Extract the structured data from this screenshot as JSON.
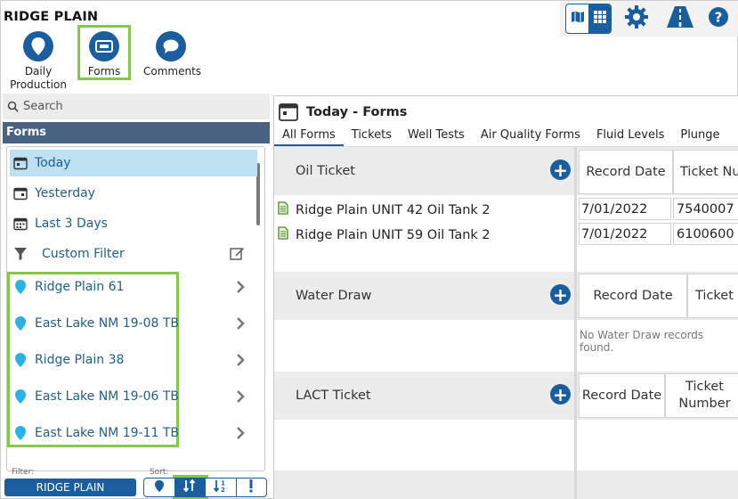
{
  "app": {
    "title": "RIDGE PLAIN"
  },
  "topnav": {
    "daily_production": "Daily\nProduction",
    "forms": "Forms",
    "comments": "Comments"
  },
  "toolbar": {
    "map_icon": "map-icon",
    "grid_icon": "grid-icon",
    "settings_icon": "gear-icon",
    "road_icon": "road-icon",
    "help_icon": "help-icon"
  },
  "left_panel": {
    "search_placeholder": "Search",
    "header": "Forms",
    "items": [
      {
        "label": "Today",
        "icon": "calendar-today-icon",
        "selected": true
      },
      {
        "label": "Yesterday",
        "icon": "calendar-icon"
      },
      {
        "label": "Last 3 Days",
        "icon": "calendar-range-icon"
      },
      {
        "label": "Custom Filter",
        "icon": "filter-icon"
      }
    ],
    "locations": [
      "Ridge Plain 61",
      "East Lake NM 19-08 TB",
      "Ridge Plain 38",
      "East Lake NM 19-06 TB",
      "East Lake NM 19-11 TB"
    ],
    "filter_label": "Filter:",
    "filter_value": "RIDGE PLAIN",
    "sort_label": "Sort:"
  },
  "main": {
    "title": "Today - Forms",
    "tabs": [
      "All Forms",
      "Tickets",
      "Well Tests",
      "Air Quality Forms",
      "Fluid Levels",
      "Plunge"
    ],
    "sections": [
      {
        "title": "Oil Ticket",
        "columns": [
          "Record Date",
          "Ticket Nu"
        ],
        "rows": [
          {
            "name": "Ridge Plain UNIT 42 Oil Tank 2",
            "record_date": "7/01/2022",
            "ticket": "7540007"
          },
          {
            "name": "Ridge Plain UNIT 59 Oil Tank 2",
            "record_date": "7/01/2022",
            "ticket": "6100600"
          }
        ]
      },
      {
        "title": "Water Draw",
        "columns": [
          "Record Date",
          "Ticket N"
        ],
        "empty": "No Water Draw records found."
      },
      {
        "title": "LACT Ticket",
        "columns": [
          "Record Date",
          "Ticket\nNumber"
        ]
      }
    ]
  },
  "colors": {
    "primary": "#1a5ea0",
    "highlight": "#86c84a",
    "selected": "#bde1f3",
    "header_bar": "#4a6281",
    "pin": "#2ab2e6"
  }
}
